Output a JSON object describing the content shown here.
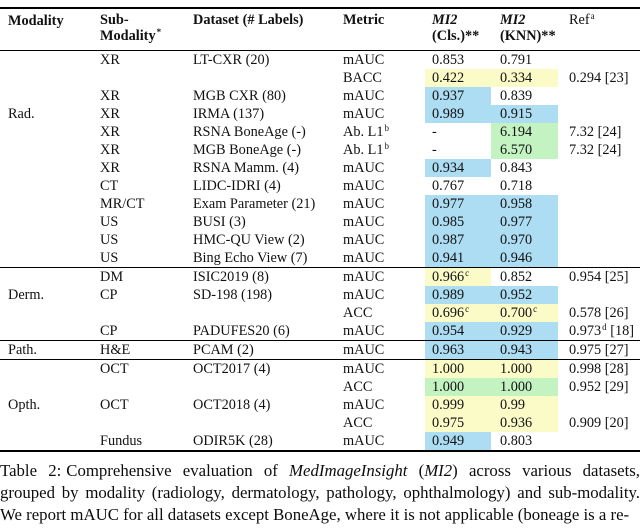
{
  "colors": {
    "highlight_yellow": "#fbfbc8",
    "highlight_blue": "#acddf3",
    "highlight_green": "#c3f3c0",
    "rule_black": "#000000"
  },
  "table": {
    "header": {
      "modality": "Modality",
      "submodality_line1": "Sub-",
      "submodality_line2": "Modality",
      "submodality_sup": "*",
      "dataset": "Dataset (# Labels)",
      "metric": "Metric",
      "mi2_cls_line1": "MI2",
      "mi2_cls_line2": "(Cls.)**",
      "mi2_knn_line1": "MI2",
      "mi2_knn_line2": "(KNN)**",
      "ref": "Ref",
      "ref_sup": "a"
    },
    "sections": [
      {
        "id": "rad",
        "label": "Rad.",
        "label_row": 3,
        "rows": [
          {
            "sub": "XR",
            "ds": "LT-CXR (20)",
            "met": "mAUC",
            "cls": "0.853",
            "knn": "0.791",
            "ref": ""
          },
          {
            "sub": "",
            "ds": "",
            "met": "BACC",
            "cls": "0.422",
            "cls_bg": "y",
            "knn": "0.334",
            "knn_bg": "y",
            "ref": "0.294 [23]"
          },
          {
            "sub": "XR",
            "ds": "MGB CXR (80)",
            "met": "mAUC",
            "cls": "0.937",
            "cls_bg": "b",
            "knn": "0.839",
            "ref": ""
          },
          {
            "sub": "XR",
            "ds": "IRMA (137)",
            "met": "mAUC",
            "cls": "0.989",
            "cls_bg": "b",
            "knn": "0.915",
            "knn_bg": "b",
            "ref": ""
          },
          {
            "sub": "XR",
            "ds": "RSNA BoneAge (-)",
            "met": "Ab. L1",
            "met_sup": "b",
            "cls": "-",
            "knn": "6.194",
            "knn_bg": "g",
            "ref": "7.32 [24]"
          },
          {
            "sub": "XR",
            "ds": "MGB BoneAge (-)",
            "met": "Ab. L1",
            "met_sup": "b",
            "cls": "-",
            "knn": "6.570",
            "knn_bg": "g",
            "ref": "7.32 [24]"
          },
          {
            "sub": "XR",
            "ds": "RSNA Mamm. (4)",
            "met": "mAUC",
            "cls": "0.934",
            "cls_bg": "b",
            "knn": "0.843",
            "ref": ""
          },
          {
            "sub": "CT",
            "ds": "LIDC-IDRI (4)",
            "met": "mAUC",
            "cls": "0.767",
            "knn": "0.718",
            "ref": ""
          },
          {
            "sub": "MR/CT",
            "ds": "Exam Parameter (21)",
            "met": "mAUC",
            "cls": "0.977",
            "cls_bg": "b",
            "knn": "0.958",
            "knn_bg": "b",
            "ref": ""
          },
          {
            "sub": "US",
            "ds": "BUSI (3)",
            "met": "mAUC",
            "cls": "0.985",
            "cls_bg": "b",
            "knn": "0.977",
            "knn_bg": "b",
            "ref": ""
          },
          {
            "sub": "US",
            "ds": "HMC-QU View (2)",
            "met": "mAUC",
            "cls": "0.987",
            "cls_bg": "b",
            "knn": "0.970",
            "knn_bg": "b",
            "ref": ""
          },
          {
            "sub": "US",
            "ds": "Bing Echo View (7)",
            "met": "mAUC",
            "cls": "0.941",
            "cls_bg": "b",
            "knn": "0.946",
            "knn_bg": "b",
            "ref": ""
          }
        ]
      },
      {
        "id": "derm",
        "label": "Derm.",
        "label_row": 1,
        "rows": [
          {
            "sub": "DM",
            "ds": "ISIC2019 (8)",
            "met": "mAUC",
            "cls": "0.966",
            "cls_sup": "c",
            "cls_bg": "y",
            "knn": "0.852",
            "ref": "0.954 [25]"
          },
          {
            "sub": "CP",
            "ds": "SD-198 (198)",
            "met": "mAUC",
            "cls": "0.989",
            "cls_bg": "b",
            "knn": "0.952",
            "knn_bg": "b",
            "ref": ""
          },
          {
            "sub": "",
            "ds": "",
            "met": "ACC",
            "cls": "0.696",
            "cls_sup": "c",
            "cls_bg": "y",
            "knn": "0.700",
            "knn_sup": "c",
            "knn_bg": "y",
            "ref": "0.578 [26]"
          },
          {
            "sub": "CP",
            "ds": "PADUFES20 (6)",
            "met": "mAUC",
            "cls": "0.954",
            "cls_bg": "b",
            "knn": "0.929",
            "knn_bg": "b",
            "ref": "0.973",
            "ref_sup": "d",
            "ref_tail": " [18]"
          }
        ]
      },
      {
        "id": "path",
        "label": "Path.",
        "label_row": 0,
        "rows": [
          {
            "sub": "H&E",
            "ds": "PCAM (2)",
            "met": "mAUC",
            "cls": "0.963",
            "cls_bg": "b",
            "knn": "0.943",
            "knn_bg": "b",
            "ref": "0.975 [27]"
          }
        ]
      },
      {
        "id": "opth",
        "label": "Opth.",
        "label_row": 2,
        "rows": [
          {
            "sub": "OCT",
            "ds": "OCT2017 (4)",
            "met": "mAUC",
            "cls": "1.000",
            "cls_bg": "y",
            "knn": "1.000",
            "knn_bg": "y",
            "ref": "0.998 [28]"
          },
          {
            "sub": "",
            "ds": "",
            "met": "ACC",
            "cls": "1.000",
            "cls_bg": "g",
            "knn": "1.000",
            "knn_bg": "g",
            "ref": "0.952 [29]"
          },
          {
            "sub": "OCT",
            "ds": "OCT2018 (4)",
            "met": "mAUC",
            "cls": "0.999",
            "cls_bg": "y",
            "knn": "0.99",
            "knn_bg": "y",
            "ref": ""
          },
          {
            "sub": "",
            "ds": "",
            "met": "ACC",
            "cls": "0.975",
            "cls_bg": "y",
            "knn": "0.936",
            "knn_bg": "y",
            "ref": "0.909 [20]"
          },
          {
            "sub": "Fundus",
            "ds": "ODIR5K (28)",
            "met": "mAUC",
            "cls": "0.949",
            "cls_bg": "b",
            "knn": "0.803",
            "ref": ""
          }
        ]
      }
    ]
  },
  "caption": {
    "label": "Table 2:",
    "text1": "Comprehensive evaluation of ",
    "italic1": "MedImageInsight",
    "text2": " (",
    "italic2": "MI2",
    "text3": ") across various datasets, grouped by modality (radiology, dermatology, pathology, ophthalmology) and sub-modality. We report mAUC for all datasets except BoneAge, where it is not applicable (boneage is a re-"
  }
}
